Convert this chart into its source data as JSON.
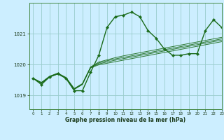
{
  "title": "Graphe pression niveau de la mer (hPa)",
  "bg_color": "#cceeff",
  "grid_color": "#99cccc",
  "line_color": "#1a6b1a",
  "xlim": [
    -0.5,
    23
  ],
  "ylim": [
    1018.55,
    1022.0
  ],
  "yticks": [
    1019,
    1020,
    1021
  ],
  "xticks": [
    0,
    1,
    2,
    3,
    4,
    5,
    6,
    7,
    8,
    9,
    10,
    11,
    12,
    13,
    14,
    15,
    16,
    17,
    18,
    19,
    20,
    21,
    22,
    23
  ],
  "main_x": [
    0,
    1,
    2,
    3,
    4,
    5,
    6,
    7,
    8,
    9,
    10,
    11,
    12,
    13,
    14,
    15,
    16,
    17,
    18,
    19,
    20,
    21,
    22,
    23
  ],
  "main_y": [
    1019.55,
    1019.35,
    1019.6,
    1019.7,
    1019.55,
    1019.15,
    1019.15,
    1019.75,
    1020.3,
    1021.2,
    1021.55,
    1021.6,
    1021.7,
    1021.55,
    1021.1,
    1020.85,
    1020.5,
    1020.3,
    1020.3,
    1020.35,
    1020.35,
    1021.1,
    1021.45,
    1021.2
  ],
  "ensemble_lines": [
    [
      1019.55,
      1019.42,
      1019.62,
      1019.72,
      1019.58,
      1019.22,
      1019.38,
      1019.92,
      1020.08,
      1020.15,
      1020.22,
      1020.28,
      1020.33,
      1020.38,
      1020.43,
      1020.48,
      1020.53,
      1020.58,
      1020.63,
      1020.68,
      1020.73,
      1020.78,
      1020.83,
      1020.88
    ],
    [
      1019.55,
      1019.41,
      1019.61,
      1019.71,
      1019.57,
      1019.21,
      1019.37,
      1019.91,
      1020.05,
      1020.12,
      1020.18,
      1020.23,
      1020.28,
      1020.33,
      1020.38,
      1020.43,
      1020.48,
      1020.53,
      1020.58,
      1020.63,
      1020.68,
      1020.73,
      1020.78,
      1020.83
    ],
    [
      1019.55,
      1019.4,
      1019.6,
      1019.7,
      1019.56,
      1019.2,
      1019.36,
      1019.9,
      1020.02,
      1020.08,
      1020.14,
      1020.19,
      1020.24,
      1020.29,
      1020.34,
      1020.39,
      1020.44,
      1020.49,
      1020.54,
      1020.59,
      1020.64,
      1020.69,
      1020.74,
      1020.79
    ],
    [
      1019.55,
      1019.39,
      1019.59,
      1019.69,
      1019.55,
      1019.19,
      1019.35,
      1019.89,
      1019.99,
      1020.04,
      1020.09,
      1020.14,
      1020.19,
      1020.24,
      1020.29,
      1020.34,
      1020.39,
      1020.44,
      1020.49,
      1020.54,
      1020.59,
      1020.64,
      1020.69,
      1020.74
    ]
  ]
}
